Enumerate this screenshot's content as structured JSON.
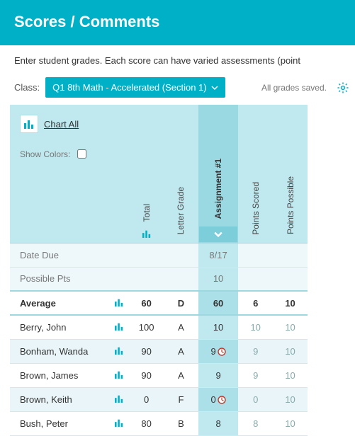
{
  "colors": {
    "brand": "#00b0c7",
    "band": "#bfe8ef",
    "band_dark": "#9ad8e2",
    "row_alt": "#e9f5f8",
    "row_alt_hl": "#ace0e9",
    "grid_line": "#cfe9ee",
    "text": "#333333",
    "muted": "#777777",
    "points_muted": "#88aaaa",
    "late_ring": "#c0392b",
    "bar_icon": "#00b0c7"
  },
  "banner": {
    "title": "Scores / Comments"
  },
  "subhead": "Enter student grades. Each score can have varied assessments (point",
  "toolbar": {
    "class_label": "Class:",
    "class_value": "Q1 8th Math - Accelerated (Section 1)",
    "saved_text": "All grades saved."
  },
  "header": {
    "chart_all": "Chart All",
    "show_colors_label": "Show Colors:",
    "show_colors_checked": false,
    "columns": {
      "total": "Total",
      "letter": "Letter Grade",
      "assignment": "Assignment #1",
      "scored": "Points Scored",
      "possible": "Points Possible"
    }
  },
  "meta_rows": {
    "date_due": {
      "label": "Date Due",
      "assignment": "8/17"
    },
    "possible_pts": {
      "label": "Possible Pts",
      "assignment": "10"
    }
  },
  "average": {
    "label": "Average",
    "total": "60",
    "letter": "D",
    "assignment": "60",
    "scored": "6",
    "possible": "10"
  },
  "students": [
    {
      "name": "Berry, John",
      "total": "100",
      "letter": "A",
      "assignment": "10",
      "late": false,
      "scored": "10",
      "possible": "10",
      "alt": false
    },
    {
      "name": "Bonham, Wanda",
      "total": "90",
      "letter": "A",
      "assignment": "9",
      "late": true,
      "scored": "9",
      "possible": "10",
      "alt": true
    },
    {
      "name": "Brown, James",
      "total": "90",
      "letter": "A",
      "assignment": "9",
      "late": false,
      "scored": "9",
      "possible": "10",
      "alt": false
    },
    {
      "name": "Brown, Keith",
      "total": "0",
      "letter": "F",
      "assignment": "0",
      "late": true,
      "scored": "0",
      "possible": "10",
      "alt": true
    },
    {
      "name": "Bush, Peter",
      "total": "80",
      "letter": "B",
      "assignment": "8",
      "late": false,
      "scored": "8",
      "possible": "10",
      "alt": false
    }
  ]
}
